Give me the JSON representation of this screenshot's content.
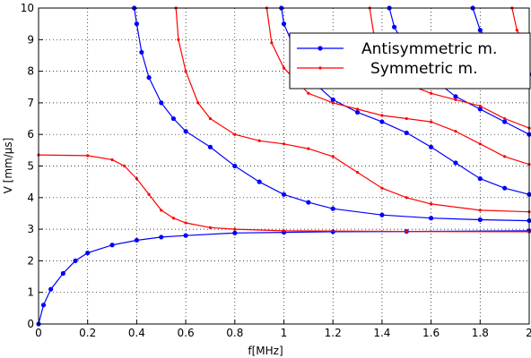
{
  "chart_data": {
    "type": "line",
    "xlabel": "f[MHz]",
    "ylabel": "V [mm/µs]",
    "xlim": [
      0,
      2
    ],
    "ylim": [
      0,
      10
    ],
    "xticks": [
      0,
      0.2,
      0.4,
      0.6,
      0.8,
      1,
      1.2,
      1.4,
      1.6,
      1.8,
      2
    ],
    "yticks": [
      0,
      1,
      2,
      3,
      4,
      5,
      6,
      7,
      8,
      9,
      10
    ],
    "grid": true,
    "legend": "upper right",
    "series": [
      {
        "name": "Antisymmetric m.",
        "color": "#0000ff",
        "x": [
          0,
          0.02,
          0.05,
          0.1,
          0.15,
          0.2,
          0.3,
          0.4,
          0.5,
          0.6,
          0.8,
          1.0,
          1.2,
          1.5,
          2.0,
          null,
          0.39,
          0.4,
          0.42,
          0.45,
          0.5,
          0.55,
          0.6,
          0.7,
          0.8,
          0.9,
          1.0,
          1.1,
          1.2,
          1.4,
          1.6,
          1.8,
          2.0,
          null,
          0.99,
          1.0,
          1.05,
          1.1,
          1.2,
          1.3,
          1.4,
          1.5,
          1.6,
          1.7,
          1.8,
          1.9,
          2.0,
          null,
          1.43,
          1.45,
          1.5,
          1.55,
          1.6,
          1.7,
          1.8,
          1.9,
          2.0,
          null,
          1.77,
          1.8,
          1.85,
          1.9,
          2.0
        ],
        "values": [
          0,
          0.6,
          1.1,
          1.6,
          2.0,
          2.25,
          2.5,
          2.65,
          2.75,
          2.8,
          2.88,
          2.9,
          2.92,
          2.93,
          2.95,
          null,
          10,
          9.5,
          8.6,
          7.8,
          7.0,
          6.5,
          6.1,
          5.6,
          5.0,
          4.5,
          4.1,
          3.85,
          3.65,
          3.45,
          3.35,
          3.3,
          3.27,
          null,
          10,
          9.5,
          8.6,
          7.8,
          7.1,
          6.7,
          6.4,
          6.05,
          5.6,
          5.1,
          4.6,
          4.3,
          4.1,
          null,
          10,
          9.4,
          8.7,
          8.2,
          7.8,
          7.2,
          6.8,
          6.4,
          6.0,
          null,
          10,
          9.3,
          8.8,
          8.4,
          7.9
        ]
      },
      {
        "name": "Symmetric m.",
        "color": "#ff0000",
        "x": [
          0,
          0.2,
          0.3,
          0.35,
          0.4,
          0.45,
          0.5,
          0.55,
          0.6,
          0.7,
          0.8,
          1.0,
          1.5,
          2.0,
          null,
          0.56,
          0.57,
          0.6,
          0.65,
          0.7,
          0.8,
          0.9,
          1.0,
          1.1,
          1.2,
          1.3,
          1.4,
          1.5,
          1.6,
          1.8,
          2.0,
          null,
          0.93,
          0.95,
          1.0,
          1.1,
          1.2,
          1.3,
          1.4,
          1.5,
          1.6,
          1.7,
          1.8,
          1.9,
          2.0,
          null,
          1.35,
          1.37,
          1.4,
          1.5,
          1.6,
          1.7,
          1.8,
          1.9,
          2.0,
          null,
          1.93,
          1.95,
          2.0
        ],
        "values": [
          5.35,
          5.33,
          5.2,
          5.0,
          4.6,
          4.1,
          3.6,
          3.35,
          3.2,
          3.05,
          3.0,
          2.95,
          2.93,
          2.92,
          null,
          10,
          9,
          8.0,
          7.0,
          6.5,
          6.0,
          5.8,
          5.7,
          5.55,
          5.3,
          4.8,
          4.3,
          4.0,
          3.8,
          3.6,
          3.55,
          null,
          10,
          8.9,
          8.1,
          7.3,
          7.0,
          6.8,
          6.6,
          6.5,
          6.4,
          6.1,
          5.7,
          5.3,
          5.05,
          null,
          10,
          9,
          8.3,
          7.6,
          7.3,
          7.1,
          6.9,
          6.5,
          6.2,
          null,
          10,
          9.3,
          8.6
        ]
      }
    ]
  }
}
